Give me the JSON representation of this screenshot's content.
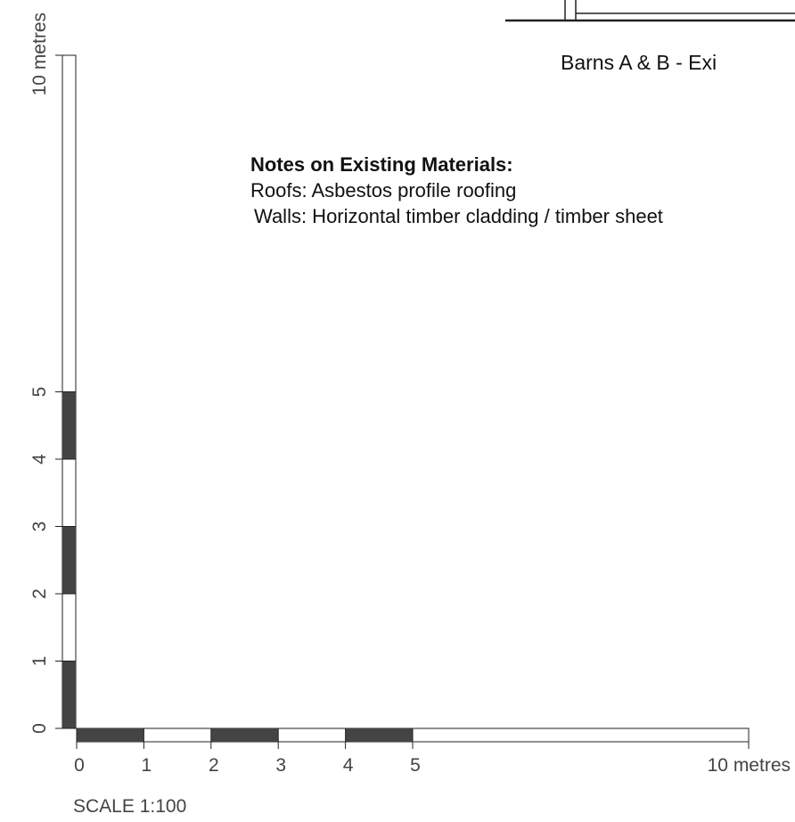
{
  "title": "Barns A & B  -  Exi",
  "notes": {
    "heading": "Notes on Existing Materials:",
    "roofs": "Roofs: Asbestos profile roofing",
    "walls": "Walls: Horizontal timber cladding / timber sheet"
  },
  "scale": {
    "label": "SCALE 1:100",
    "horizontal_ticks": [
      "0",
      "1",
      "2",
      "3",
      "4",
      "5"
    ],
    "horizontal_end_label": "10 metres",
    "vertical_ticks": [
      "0",
      "1",
      "2",
      "3",
      "4",
      "5"
    ],
    "vertical_end_label": "10 metres",
    "dark_segments_m": [
      [
        0,
        1
      ],
      [
        2,
        3
      ],
      [
        4,
        5
      ]
    ],
    "total_m": 10
  },
  "colors": {
    "dark": "#444444",
    "line": "#222222",
    "label": "#444444"
  }
}
